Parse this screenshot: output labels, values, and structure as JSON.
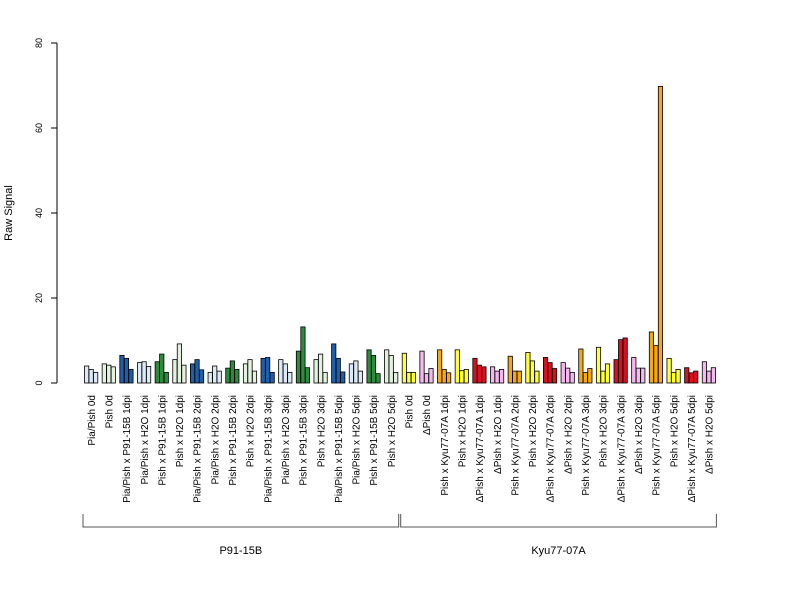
{
  "chart_data": {
    "type": "bar",
    "ylabel": "Raw Signal",
    "xlabel": "",
    "ylim": [
      0,
      80
    ],
    "yticks": [
      0,
      20,
      40,
      60,
      80
    ],
    "bars_per_category": 3,
    "categories": [
      {
        "label": "Pia/Pish 0d",
        "values": [
          4.0,
          3.2,
          2.5
        ],
        "color": "#dce9f7"
      },
      {
        "label": "Pish 0d",
        "values": [
          4.5,
          4.2,
          3.8
        ],
        "color": "#e3f2df"
      },
      {
        "label": "Pia/Pish x P91-15B 1dpi",
        "values": [
          6.5,
          5.8,
          3.2
        ],
        "color": "#1f5ea8"
      },
      {
        "label": "Pia/Pish x H2O 1dpi",
        "values": [
          4.8,
          5.0,
          3.9
        ],
        "color": "#dce9f7"
      },
      {
        "label": "Pish x P91-15B 1dpi",
        "values": [
          5.0,
          6.8,
          2.5
        ],
        "color": "#2e8b3e"
      },
      {
        "label": "Pish x H2O 1dpi",
        "values": [
          5.5,
          9.2,
          4.2
        ],
        "color": "#e3f2df"
      },
      {
        "label": "Pia/Pish x P91-15B 2dpi",
        "values": [
          4.5,
          5.5,
          3.1
        ],
        "color": "#1f5ea8"
      },
      {
        "label": "Pia/Pish x H2O 2dpi",
        "values": [
          2.5,
          4.0,
          2.8
        ],
        "color": "#dce9f7"
      },
      {
        "label": "Pish x P91-15B 2dpi",
        "values": [
          3.5,
          5.2,
          3.2
        ],
        "color": "#2e8b3e"
      },
      {
        "label": "Pish x H2O 2dpi",
        "values": [
          4.5,
          5.5,
          2.8
        ],
        "color": "#e3f2df"
      },
      {
        "label": "Pia/Pish x P91-15B 3dpi",
        "values": [
          5.8,
          6.0,
          2.5
        ],
        "color": "#1f5ea8"
      },
      {
        "label": "Pia/Pish x H2O 3dpi",
        "values": [
          5.5,
          4.5,
          2.5
        ],
        "color": "#dce9f7"
      },
      {
        "label": "Pish x P91-15B 3dpi",
        "values": [
          7.5,
          13.2,
          3.6
        ],
        "color": "#2e8b3e"
      },
      {
        "label": "Pish x H2O 3dpi",
        "values": [
          5.5,
          6.8,
          2.5
        ],
        "color": "#e3f2df"
      },
      {
        "label": "Pia/Pish x P91-15B 5dpi",
        "values": [
          9.2,
          5.8,
          2.6
        ],
        "color": "#1f5ea8"
      },
      {
        "label": "Pia/Pish x H2O 5dpi",
        "values": [
          4.5,
          5.2,
          2.8
        ],
        "color": "#dce9f7"
      },
      {
        "label": "Pish x P91-15B 5dpi",
        "values": [
          7.8,
          6.5,
          2.2
        ],
        "color": "#2e8b3e"
      },
      {
        "label": "Pish x H2O 5dpi",
        "values": [
          7.8,
          6.5,
          2.5
        ],
        "color": "#e3f2df"
      },
      {
        "label": "Pish 0d",
        "values": [
          7.0,
          2.5,
          2.5
        ],
        "color": "#ffff3c"
      },
      {
        "label": "ΔPish 0d",
        "values": [
          7.5,
          2.2,
          3.4
        ],
        "color": "#f5b8ee"
      },
      {
        "label": "Pish x Kyu77-07A 1dpi",
        "values": [
          7.8,
          3.2,
          2.4
        ],
        "color": "#f5a71c"
      },
      {
        "label": "Pish x H2O 1dpi",
        "values": [
          7.8,
          2.9,
          3.2
        ],
        "color": "#ffff3c"
      },
      {
        "label": "ΔPish x Kyu77-07A 1dpi",
        "values": [
          5.8,
          4.2,
          3.8
        ],
        "color": "#d9101e"
      },
      {
        "label": "ΔPish x H2O 1dpi",
        "values": [
          3.8,
          2.8,
          3.2
        ],
        "color": "#f5b8ee"
      },
      {
        "label": "Pish x Kyu77-07A 2dpi",
        "values": [
          6.3,
          2.8,
          2.8
        ],
        "color": "#f5a71c"
      },
      {
        "label": "Pish x H2O 2dpi",
        "values": [
          7.2,
          5.2,
          2.8
        ],
        "color": "#ffff3c"
      },
      {
        "label": "ΔPish x Kyu77-07A 2dpi",
        "values": [
          6.0,
          4.8,
          3.4
        ],
        "color": "#d9101e"
      },
      {
        "label": "ΔPish x H2O 2dpi",
        "values": [
          4.8,
          3.5,
          2.5
        ],
        "color": "#f5b8ee"
      },
      {
        "label": "Pish x Kyu77-07A 3dpi",
        "values": [
          8.0,
          2.5,
          3.4
        ],
        "color": "#f5a71c"
      },
      {
        "label": "Pish x H2O 3dpi",
        "values": [
          8.4,
          2.8,
          4.5
        ],
        "color": "#ffff3c"
      },
      {
        "label": "ΔPish x Kyu77-07A 3dpi",
        "values": [
          5.5,
          10.2,
          10.6
        ],
        "color": "#d9101e"
      },
      {
        "label": "ΔPish x H2O 3dpi",
        "values": [
          6.0,
          3.5,
          3.5
        ],
        "color": "#f5b8ee"
      },
      {
        "label": "Pish x Kyu77-07A 5dpi",
        "values": [
          12.0,
          8.8,
          69.8
        ],
        "color": "#f5a71c"
      },
      {
        "label": "Pish x H2O 5dpi",
        "values": [
          5.8,
          2.5,
          3.2
        ],
        "color": "#ffff3c"
      },
      {
        "label": "ΔPish x Kyu77-07A 5dpi",
        "values": [
          3.6,
          2.4,
          2.8
        ],
        "color": "#d9101e"
      },
      {
        "label": "ΔPish x H2O 5dpi",
        "values": [
          5.0,
          2.8,
          3.6
        ],
        "color": "#f5b8ee"
      }
    ],
    "groups": [
      {
        "label": "P91-15B",
        "start": 0,
        "end": 17
      },
      {
        "label": "Kyu77-07A",
        "start": 18,
        "end": 35
      }
    ],
    "grid": false,
    "legend": "none"
  }
}
